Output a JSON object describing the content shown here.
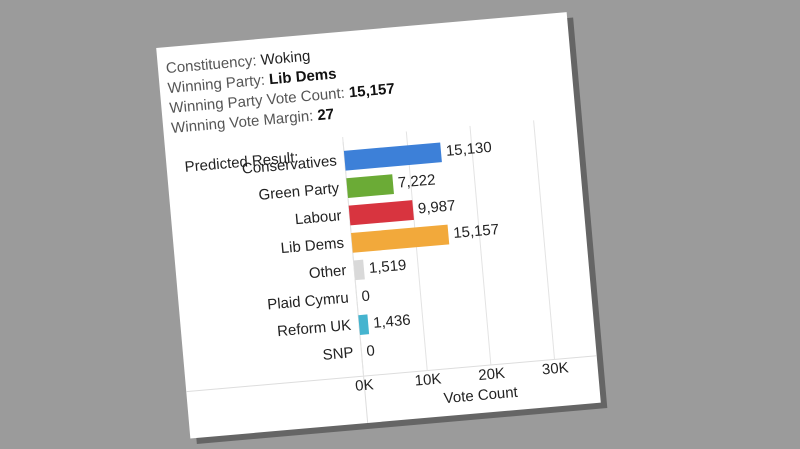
{
  "details": [
    {
      "label": "Constituency:",
      "value": "Woking"
    },
    {
      "label": "Winning Party:",
      "value": "Lib Dems"
    },
    {
      "label": "Winning Party Vote Count:",
      "value": "15,157"
    },
    {
      "label": "Winning Vote Margin:",
      "value": "27"
    }
  ],
  "chart_data": {
    "type": "bar",
    "orientation": "horizontal",
    "title": "Predicted Result:",
    "categories": [
      "Conservatives",
      "Green Party",
      "Labour",
      "Lib Dems",
      "Other",
      "Plaid Cymru",
      "Reform UK",
      "SNP"
    ],
    "values": [
      15130,
      7222,
      9987,
      15157,
      1519,
      0,
      1436,
      0
    ],
    "value_labels": [
      "15,130",
      "7,222",
      "9,987",
      "15,157",
      "1,519",
      "0",
      "1,436",
      "0"
    ],
    "colors": [
      "#3d80d8",
      "#6bab36",
      "#d8343f",
      "#f2a93b",
      "#d9d9d9",
      "#3f8f52",
      "#45b4cf",
      "#f3df4a"
    ],
    "xlabel": "Vote Count",
    "xlim": [
      0,
      36000
    ],
    "xticks": [
      {
        "value": 0,
        "label": "0K"
      },
      {
        "value": 10000,
        "label": "10K"
      },
      {
        "value": 20000,
        "label": "20K"
      },
      {
        "value": 30000,
        "label": "30K"
      }
    ],
    "grid": true
  }
}
